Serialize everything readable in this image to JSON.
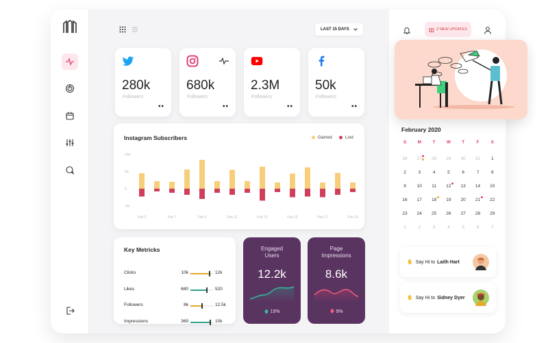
{
  "colors": {
    "accent": "#e0426a",
    "purple": "#5a3461",
    "gained": "#f7cf7b",
    "lost": "#cf3f5c",
    "green": "#2fa18a",
    "pink_bg": "#fcd9cc"
  },
  "header": {
    "date_range": "LAST 15 DAYS"
  },
  "socials": [
    {
      "icon": "twitter-icon",
      "value": "280k",
      "label": "Followers"
    },
    {
      "icon": "instagram-icon",
      "value": "680k",
      "label": "Followers"
    },
    {
      "icon": "youtube-icon",
      "value": "2.3M",
      "label": "Followers"
    },
    {
      "icon": "facebook-icon",
      "value": "50k",
      "label": "Followers"
    }
  ],
  "chart_data": {
    "type": "bar",
    "title": "Instagram Subscribers",
    "legend": [
      "Gained",
      "Lost"
    ],
    "legend_position": "top-right",
    "yticks": [
      "100",
      "50",
      "0",
      "-50"
    ],
    "ylim": [
      -50,
      100
    ],
    "xtick_labels": [
      "Feb 5",
      "Feb 7",
      "Feb 9",
      "Feb 11",
      "Feb 13",
      "Feb 15",
      "Feb 17",
      "Feb 19"
    ],
    "x": [
      "Feb 5",
      "Feb 6",
      "Feb 7",
      "Feb 8",
      "Feb 9",
      "Feb 10",
      "Feb 11",
      "Feb 12",
      "Feb 13",
      "Feb 14",
      "Feb 15",
      "Feb 16",
      "Feb 17",
      "Feb 18",
      "Feb 19"
    ],
    "series": [
      {
        "name": "Gained",
        "values": [
          45,
          22,
          20,
          56,
          84,
          22,
          55,
          22,
          64,
          18,
          44,
          62,
          18,
          46,
          18
        ]
      },
      {
        "name": "Lost",
        "values": [
          -23,
          -8,
          -12,
          -18,
          -30,
          -12,
          -18,
          -12,
          -35,
          -10,
          -25,
          -23,
          -25,
          -18,
          -10
        ]
      }
    ],
    "grid": false
  },
  "metrics": {
    "title": "Key Metricks",
    "rows": [
      {
        "name": "Clicks",
        "low": "10k",
        "high": "12k",
        "fill": 0.82,
        "color": "#e3a92a"
      },
      {
        "name": "Likes",
        "low": "680",
        "high": "520",
        "fill": 0.7,
        "color": "#2fa18a"
      },
      {
        "name": "Followers",
        "low": "8k",
        "high": "12.5k",
        "fill": 0.5,
        "color": "#e3a92a"
      },
      {
        "name": "Impressions",
        "low": "369",
        "high": "10k",
        "fill": 0.86,
        "color": "#2fa18a"
      }
    ]
  },
  "engaged": {
    "title_line1": "Engaged",
    "title_line2": "Users",
    "value": "12.2k",
    "change": "19%"
  },
  "impressions": {
    "title_line1": "Page",
    "title_line2": "Impressions",
    "value": "8.6k",
    "change": "9%"
  },
  "right": {
    "updates": "2 NEW UPDATES"
  },
  "calendar": {
    "title": "February 2020",
    "weekdays": [
      "S",
      "M",
      "T",
      "W",
      "T",
      "F",
      "S"
    ],
    "weeks": [
      [
        "26",
        "27",
        "28",
        "29",
        "30",
        "31",
        "1"
      ],
      [
        "2",
        "3",
        "4",
        "5",
        "6",
        "7",
        "8"
      ],
      [
        "9",
        "10",
        "11",
        "12",
        "13",
        "14",
        "15"
      ],
      [
        "16",
        "17",
        "18",
        "19",
        "20",
        "21",
        "22"
      ],
      [
        "23",
        "24",
        "25",
        "26",
        "27",
        "28",
        "29"
      ],
      [
        "1",
        "2",
        "3",
        "4",
        "5",
        "6",
        "7"
      ]
    ]
  },
  "contacts": [
    {
      "prefix": "Say Hi to",
      "name": "Laith Hart"
    },
    {
      "prefix": "Say Hi to",
      "name": "Sidney Dyer"
    }
  ]
}
